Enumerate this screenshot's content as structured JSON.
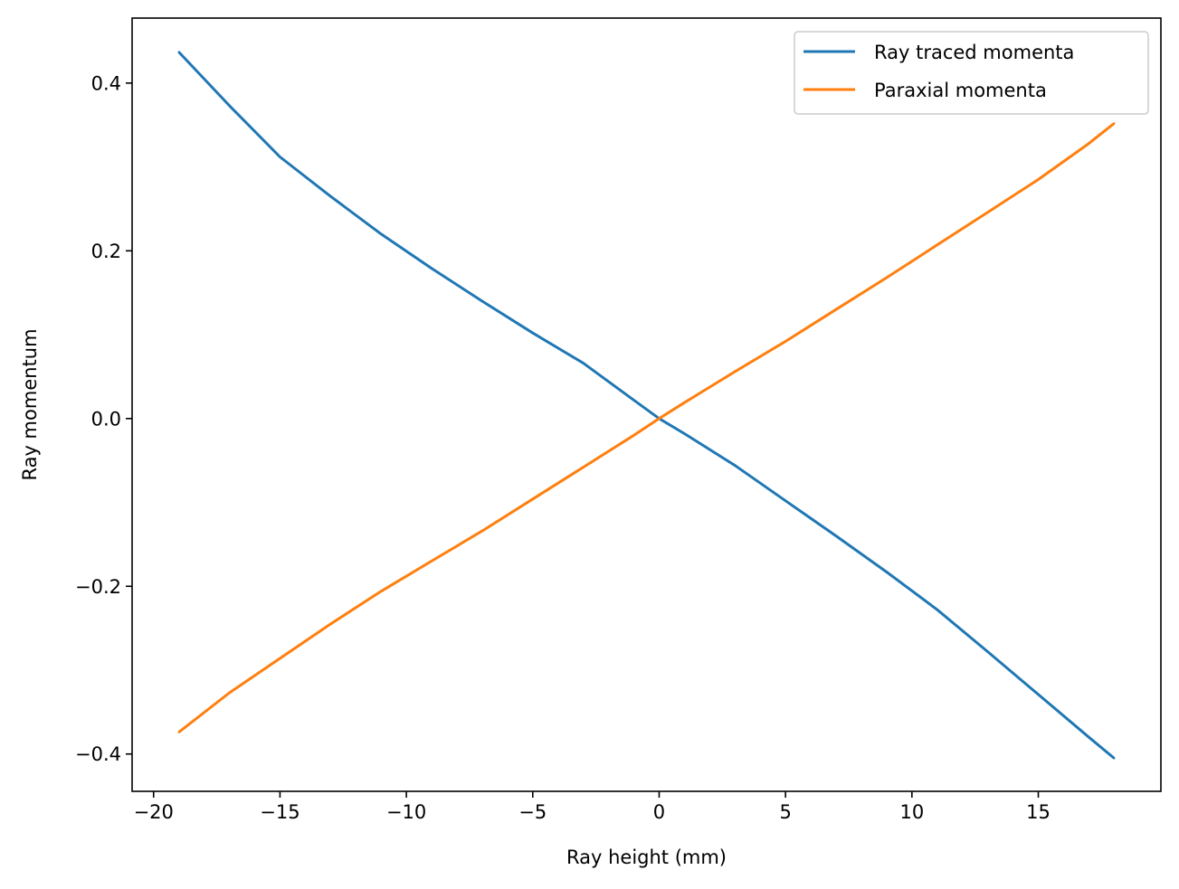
{
  "chart_data": {
    "type": "line",
    "title": "",
    "xlabel": "Ray height (mm)",
    "ylabel": "Ray momentum",
    "xlim": [
      -20.85,
      19.85
    ],
    "ylim": [
      -0.4445,
      0.4775
    ],
    "xticks": [
      -20,
      -15,
      -10,
      -5,
      0,
      5,
      10,
      15
    ],
    "xtick_labels": [
      "−20",
      "−15",
      "−10",
      "−5",
      "0",
      "5",
      "10",
      "15"
    ],
    "yticks": [
      -0.4,
      -0.2,
      0.0,
      0.2,
      0.4
    ],
    "ytick_labels": [
      "−0.4",
      "−0.2",
      "0.0",
      "0.2",
      "0.4"
    ],
    "grid": false,
    "legend_position": "top-right",
    "series": [
      {
        "name": "Ray traced momenta",
        "color": "#1f77b4",
        "x": [
          -19,
          -17,
          -15,
          -13,
          -11,
          -9,
          -7,
          -5,
          -3,
          -1,
          0,
          1,
          3,
          5,
          7,
          9,
          11,
          13,
          15,
          17,
          18
        ],
        "y": [
          0.437,
          0.373,
          0.312,
          0.265,
          0.22,
          0.179,
          0.14,
          0.102,
          0.066,
          0.022,
          0.0,
          -0.018,
          -0.056,
          -0.098,
          -0.14,
          -0.183,
          -0.228,
          -0.278,
          -0.329,
          -0.38,
          -0.405
        ]
      },
      {
        "name": "Paraxial momenta",
        "color": "#ff7f0e",
        "x": [
          -19,
          -17,
          -15,
          -13,
          -11,
          -9,
          -7,
          -5,
          -3,
          -1,
          0,
          1,
          3,
          5,
          7,
          9,
          11,
          13,
          15,
          17,
          18
        ],
        "y": [
          -0.374,
          -0.327,
          -0.286,
          -0.245,
          -0.206,
          -0.17,
          -0.134,
          -0.096,
          -0.058,
          -0.02,
          0.0,
          0.019,
          0.056,
          0.092,
          0.13,
          0.168,
          0.207,
          0.246,
          0.285,
          0.328,
          0.352
        ]
      }
    ]
  }
}
